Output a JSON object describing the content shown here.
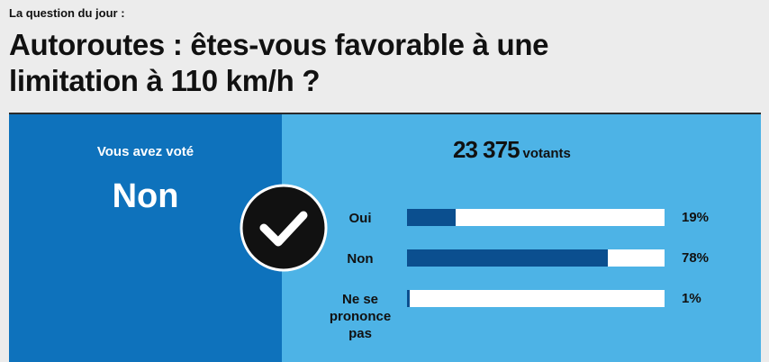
{
  "header": {
    "kicker": "La question du jour :",
    "title": "Autoroutes : êtes-vous favorable à une limitation à 110 km/h ?"
  },
  "vote": {
    "label": "Vous avez voté",
    "choice": "Non"
  },
  "results": {
    "total": "23 375",
    "total_unit": "votants",
    "xlim": [
      0,
      100
    ],
    "options": [
      {
        "label": "Oui",
        "value": 19,
        "value_label": "19%"
      },
      {
        "label": "Non",
        "value": 78,
        "value_label": "78%"
      },
      {
        "label": "Ne se prononce pas",
        "value": 1,
        "value_label": "1%"
      }
    ]
  }
}
